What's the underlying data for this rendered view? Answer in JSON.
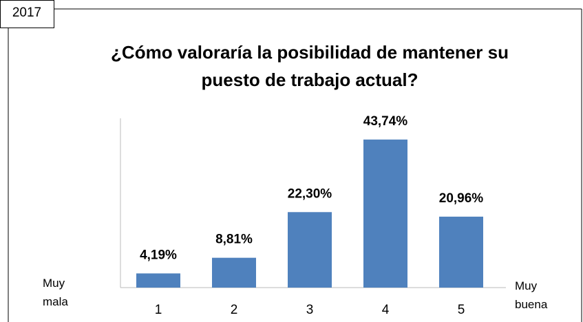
{
  "chart_data": {
    "type": "bar",
    "tag": "2017",
    "title": "¿Cómo valoraría la posibilidad de mantener su puesto de trabajo actual?",
    "categories": [
      "1",
      "2",
      "3",
      "4",
      "5"
    ],
    "values": [
      4.19,
      8.81,
      22.3,
      43.74,
      20.96
    ],
    "value_labels": [
      "4,19%",
      "8,81%",
      "22,30%",
      "43,74%",
      "20,96%"
    ],
    "color": "#4f81bd",
    "ylim": [
      0,
      50
    ],
    "left_label": "Muy mala",
    "right_label": "Muy buena"
  }
}
